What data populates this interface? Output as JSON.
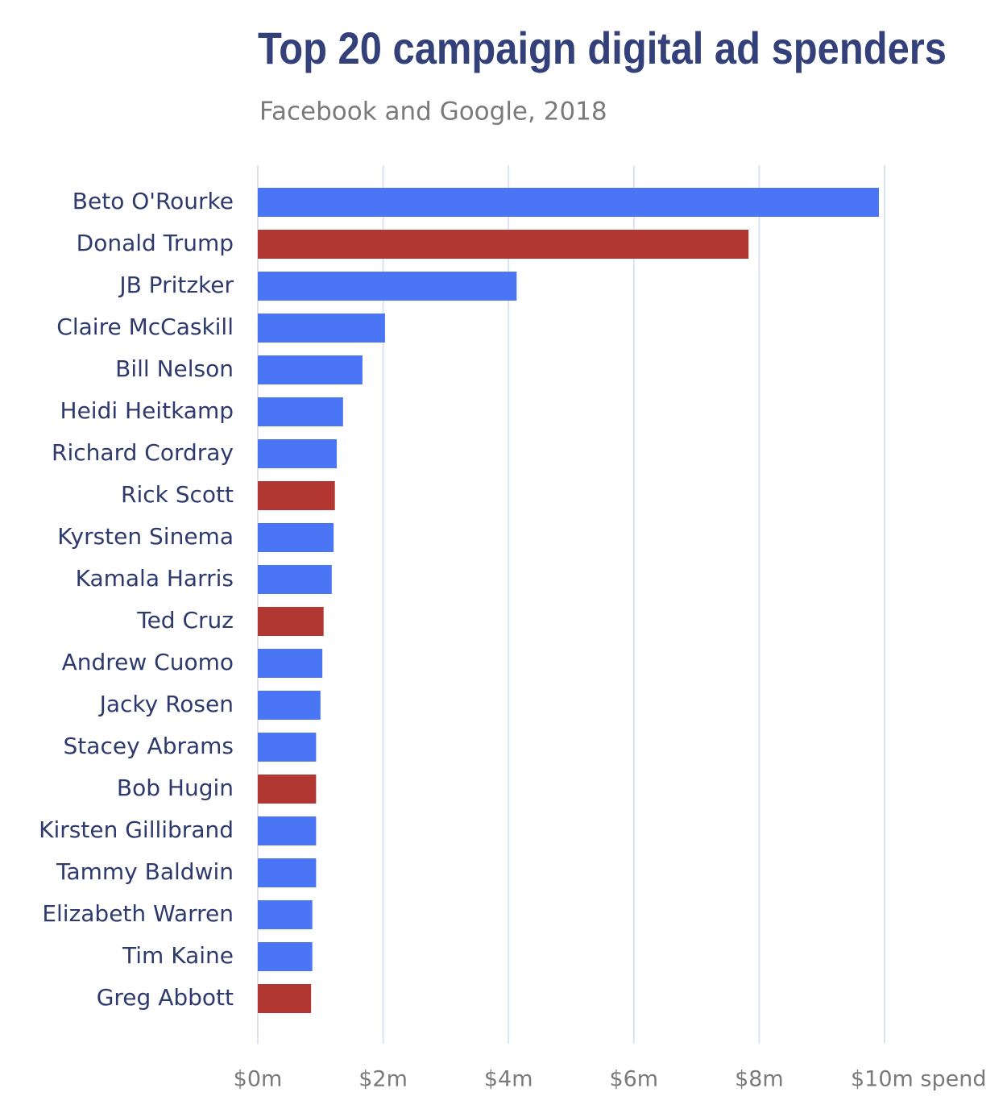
{
  "chart_data": {
    "type": "bar",
    "orientation": "horizontal",
    "title": "Top 20 campaign digital ad spenders",
    "subtitle": "Facebook and Google, 2018",
    "categories": [
      "Beto O'Rourke",
      "Donald Trump",
      "JB Pritzker",
      "Claire McCaskill",
      "Bill Nelson",
      "Heidi Heitkamp",
      "Richard Cordray",
      "Rick Scott",
      "Kyrsten Sinema",
      "Kamala Harris",
      "Ted Cruz",
      "Andrew Cuomo",
      "Jacky Rosen",
      "Stacey Abrams",
      "Bob Hugin",
      "Kirsten Gillibrand",
      "Tammy Baldwin",
      "Elizabeth Warren",
      "Tim Kaine",
      "Greg Abbott"
    ],
    "values": [
      9.91,
      7.83,
      4.13,
      2.03,
      1.67,
      1.36,
      1.26,
      1.23,
      1.21,
      1.18,
      1.05,
      1.03,
      1.0,
      0.93,
      0.93,
      0.93,
      0.93,
      0.87,
      0.87,
      0.85
    ],
    "colors": [
      "#4a76f5",
      "#b23632",
      "#4a76f5",
      "#4a76f5",
      "#4a76f5",
      "#4a76f5",
      "#4a76f5",
      "#b23632",
      "#4a76f5",
      "#4a76f5",
      "#b23632",
      "#4a76f5",
      "#4a76f5",
      "#4a76f5",
      "#b23632",
      "#4a76f5",
      "#4a76f5",
      "#4a76f5",
      "#4a76f5",
      "#b23632"
    ],
    "xlim": [
      0,
      10
    ],
    "xticks": [
      {
        "value": 0,
        "label": "$0m"
      },
      {
        "value": 2,
        "label": "$2m"
      },
      {
        "value": 4,
        "label": "$4m"
      },
      {
        "value": 6,
        "label": "$6m"
      },
      {
        "value": 8,
        "label": "$8m"
      },
      {
        "value": 10,
        "label": "$10m spend"
      }
    ],
    "grid": true
  }
}
